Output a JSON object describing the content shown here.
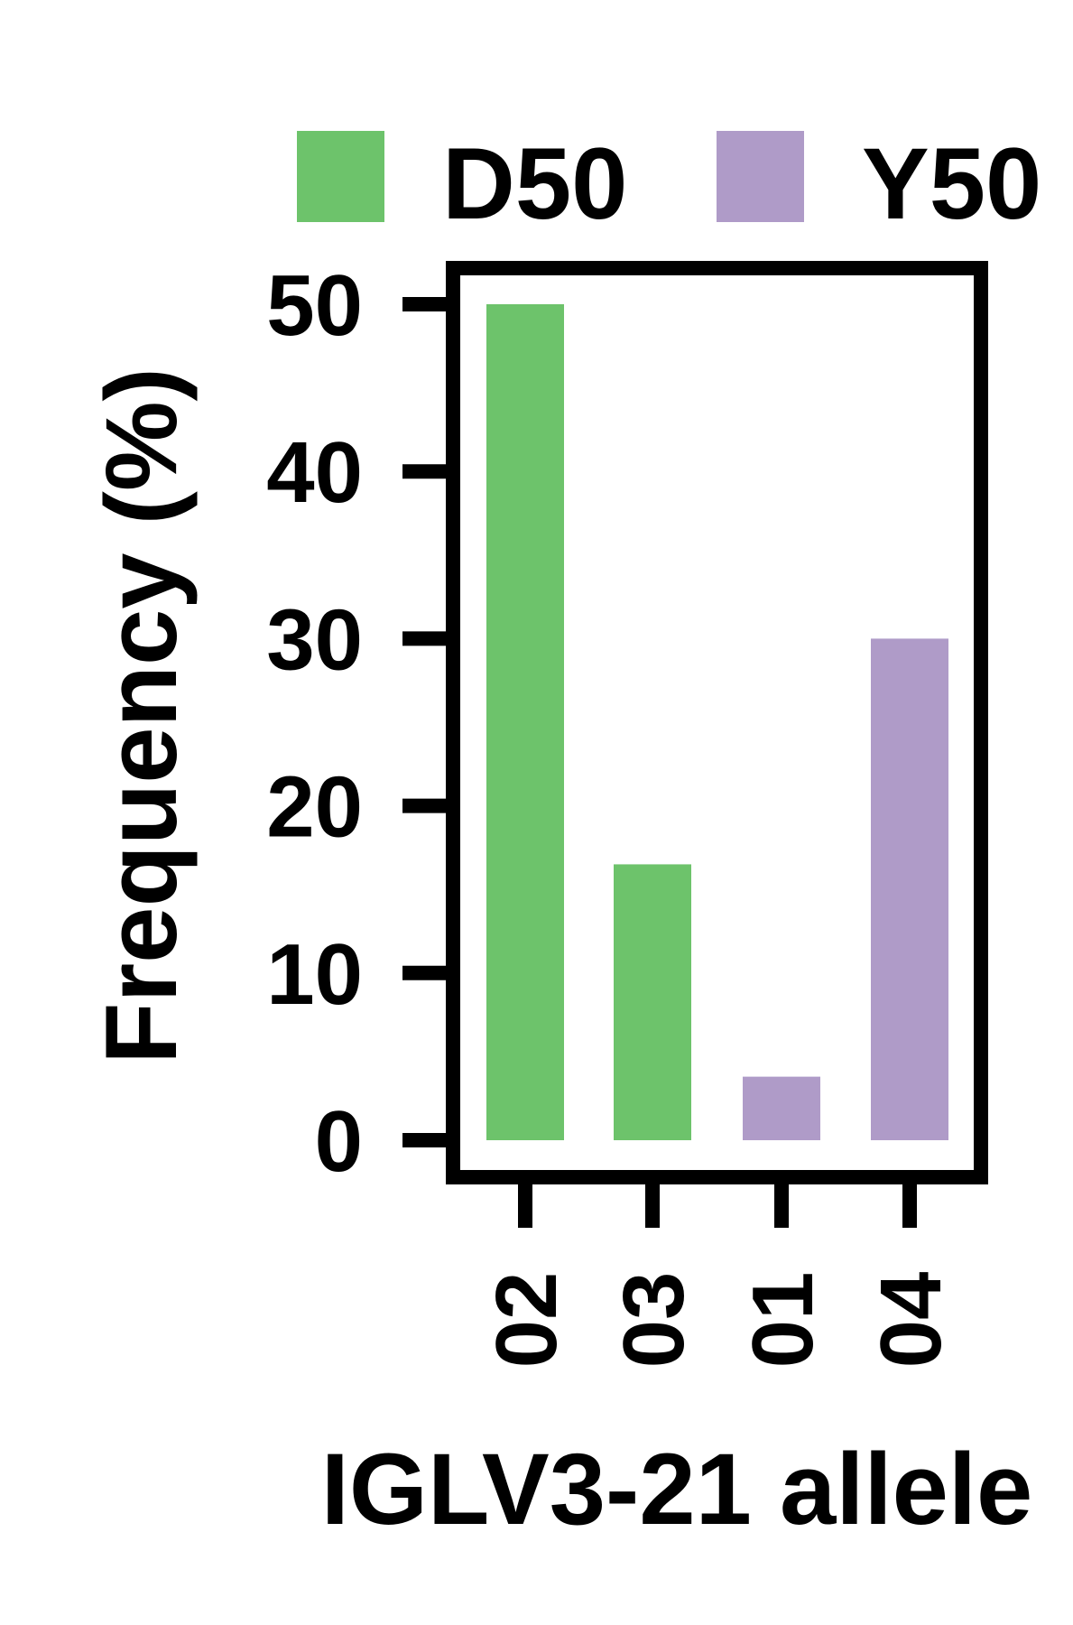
{
  "chart_data": {
    "type": "bar",
    "title": "",
    "xlabel": "IGLV3-21 allele",
    "ylabel": "Frequency (%)",
    "ylim": [
      0,
      52.5
    ],
    "yticks": [
      "0",
      "10",
      "20",
      "30",
      "40",
      "50"
    ],
    "categories": [
      "02",
      "03",
      "01",
      "04"
    ],
    "values": [
      50,
      16.5,
      3.8,
      30
    ],
    "bar_series": [
      "D50",
      "D50",
      "Y50",
      "Y50"
    ],
    "legend": {
      "position": "top",
      "items": [
        {
          "label": "D50",
          "color": "#6dc36b"
        },
        {
          "label": "Y50",
          "color": "#af9bc8"
        }
      ]
    },
    "grid": false
  }
}
